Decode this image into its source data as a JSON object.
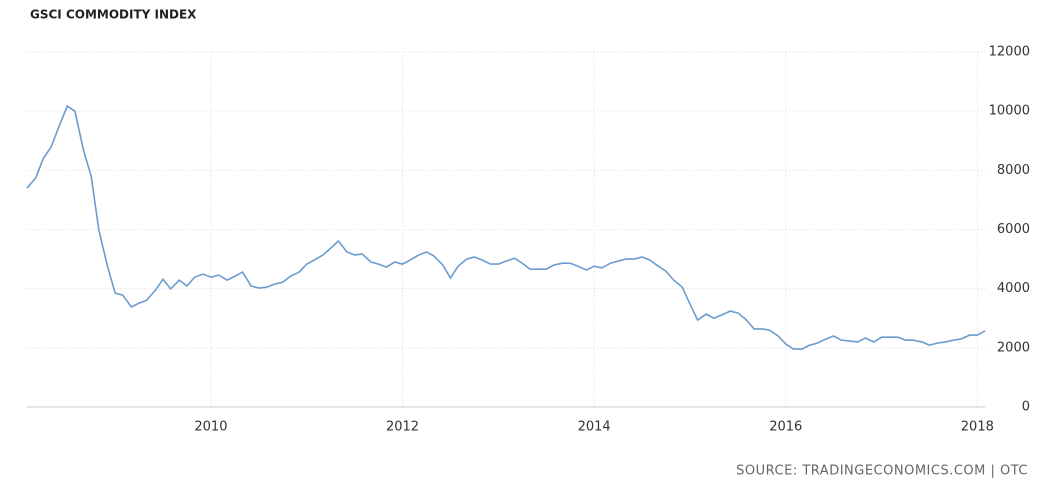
{
  "chart_data": {
    "type": "line",
    "title": "GSCI COMMODITY INDEX",
    "source": "SOURCE: TRADINGECONOMICS.COM | OTC",
    "x": [
      2008.08,
      2008.17,
      2008.25,
      2008.33,
      2008.42,
      2008.5,
      2008.58,
      2008.67,
      2008.75,
      2008.83,
      2008.92,
      2009.0,
      2009.08,
      2009.17,
      2009.25,
      2009.33,
      2009.42,
      2009.5,
      2009.58,
      2009.67,
      2009.75,
      2009.83,
      2009.92,
      2010.0,
      2010.08,
      2010.17,
      2010.25,
      2010.33,
      2010.42,
      2010.5,
      2010.58,
      2010.67,
      2010.75,
      2010.83,
      2010.92,
      2011.0,
      2011.08,
      2011.17,
      2011.25,
      2011.33,
      2011.42,
      2011.5,
      2011.58,
      2011.67,
      2011.75,
      2011.83,
      2011.92,
      2012.0,
      2012.08,
      2012.17,
      2012.25,
      2012.33,
      2012.42,
      2012.5,
      2012.58,
      2012.67,
      2012.75,
      2012.83,
      2012.92,
      2013.0,
      2013.08,
      2013.17,
      2013.25,
      2013.33,
      2013.42,
      2013.5,
      2013.58,
      2013.67,
      2013.75,
      2013.83,
      2013.92,
      2014.0,
      2014.08,
      2014.17,
      2014.25,
      2014.33,
      2014.42,
      2014.5,
      2014.58,
      2014.67,
      2014.75,
      2014.83,
      2014.92,
      2015.0,
      2015.08,
      2015.17,
      2015.25,
      2015.33,
      2015.42,
      2015.5,
      2015.58,
      2015.67,
      2015.75,
      2015.83,
      2015.92,
      2016.0,
      2016.08,
      2016.17,
      2016.25,
      2016.33,
      2016.42,
      2016.5,
      2016.58,
      2016.67,
      2016.75,
      2016.83,
      2016.92,
      2017.0,
      2017.08,
      2017.17,
      2017.25,
      2017.33,
      2017.42,
      2017.5,
      2017.58,
      2017.67,
      2017.75,
      2017.83,
      2017.92,
      2018.0,
      2018.08
    ],
    "series": [
      {
        "name": "GSCI",
        "color": "#6a9ccf",
        "values": [
          7400,
          7740,
          8400,
          8780,
          9530,
          10170,
          10000,
          8680,
          7800,
          5980,
          4760,
          3850,
          3780,
          3380,
          3510,
          3610,
          3950,
          4320,
          3990,
          4290,
          4090,
          4390,
          4490,
          4390,
          4460,
          4290,
          4420,
          4560,
          4090,
          4020,
          4050,
          4160,
          4220,
          4420,
          4560,
          4830,
          4970,
          5140,
          5370,
          5610,
          5240,
          5140,
          5170,
          4900,
          4830,
          4730,
          4900,
          4830,
          4970,
          5140,
          5240,
          5100,
          4800,
          4360,
          4760,
          5000,
          5070,
          4970,
          4830,
          4830,
          4930,
          5030,
          4860,
          4660,
          4660,
          4660,
          4800,
          4860,
          4860,
          4760,
          4630,
          4760,
          4700,
          4860,
          4930,
          5000,
          5000,
          5070,
          4970,
          4760,
          4590,
          4290,
          4050,
          3480,
          2940,
          3140,
          3000,
          3110,
          3240,
          3180,
          2970,
          2640,
          2640,
          2600,
          2400,
          2130,
          1960,
          1960,
          2090,
          2160,
          2300,
          2400,
          2260,
          2230,
          2200,
          2330,
          2200,
          2360,
          2360,
          2360,
          2260,
          2260,
          2200,
          2090,
          2160,
          2200,
          2260,
          2300,
          2430,
          2430,
          2570
        ]
      }
    ],
    "xlim": [
      2008.08,
      2018.08
    ],
    "xticks": [
      2010,
      2012,
      2014,
      2016,
      2018
    ],
    "ylim": [
      0,
      12000
    ],
    "yticks": [
      0,
      2000,
      4000,
      6000,
      8000,
      10000,
      12000
    ],
    "grid": true
  }
}
